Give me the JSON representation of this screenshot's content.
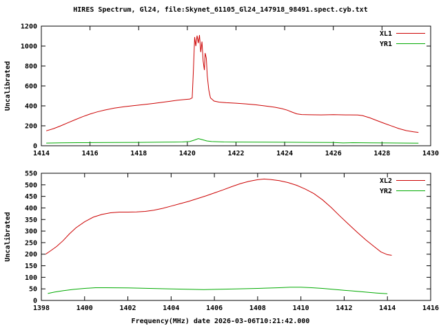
{
  "page": {
    "background": "#ffffff"
  },
  "chart_data": [
    {
      "type": "line",
      "title": "HIRES Spectrum, Gl24, file:Skynet_61105_Gl24_147918_98491.spect.cyb.txt",
      "xlabel": "",
      "ylabel": "Uncalibrated",
      "xlim": [
        1414,
        1430
      ],
      "ylim": [
        0,
        1200
      ],
      "xtick_step": 2,
      "ytick_step": 200,
      "grid": false,
      "legend_position": "top-right",
      "series": [
        {
          "name": "XL1",
          "color": "#cc0000",
          "points": [
            [
              1414.2,
              150
            ],
            [
              1414.5,
              172
            ],
            [
              1414.8,
              200
            ],
            [
              1415.1,
              232
            ],
            [
              1415.4,
              262
            ],
            [
              1415.7,
              292
            ],
            [
              1416.0,
              318
            ],
            [
              1416.3,
              340
            ],
            [
              1416.6,
              358
            ],
            [
              1417.0,
              378
            ],
            [
              1417.4,
              392
            ],
            [
              1417.8,
              403
            ],
            [
              1418.2,
              413
            ],
            [
              1418.6,
              424
            ],
            [
              1419.0,
              437
            ],
            [
              1419.3,
              447
            ],
            [
              1419.6,
              457
            ],
            [
              1419.9,
              464
            ],
            [
              1420.1,
              468
            ],
            [
              1420.2,
              480
            ],
            [
              1420.25,
              760
            ],
            [
              1420.3,
              1090
            ],
            [
              1420.35,
              1000
            ],
            [
              1420.4,
              1105
            ],
            [
              1420.45,
              1030
            ],
            [
              1420.5,
              1110
            ],
            [
              1420.55,
              940
            ],
            [
              1420.6,
              1045
            ],
            [
              1420.65,
              850
            ],
            [
              1420.7,
              760
            ],
            [
              1420.73,
              930
            ],
            [
              1420.78,
              880
            ],
            [
              1420.82,
              700
            ],
            [
              1420.88,
              560
            ],
            [
              1420.95,
              480
            ],
            [
              1421.1,
              448
            ],
            [
              1421.3,
              438
            ],
            [
              1421.6,
              432
            ],
            [
              1422.0,
              427
            ],
            [
              1422.4,
              420
            ],
            [
              1422.8,
              411
            ],
            [
              1423.2,
              399
            ],
            [
              1423.6,
              386
            ],
            [
              1423.9,
              372
            ],
            [
              1424.1,
              357
            ],
            [
              1424.3,
              338
            ],
            [
              1424.5,
              320
            ],
            [
              1424.7,
              313
            ],
            [
              1425.0,
              311
            ],
            [
              1425.5,
              310
            ],
            [
              1426.0,
              312
            ],
            [
              1426.5,
              310
            ],
            [
              1427.0,
              309
            ],
            [
              1427.2,
              303
            ],
            [
              1427.5,
              280
            ],
            [
              1427.8,
              252
            ],
            [
              1428.1,
              224
            ],
            [
              1428.4,
              198
            ],
            [
              1428.7,
              172
            ],
            [
              1429.0,
              152
            ],
            [
              1429.3,
              139
            ],
            [
              1429.5,
              134
            ]
          ]
        },
        {
          "name": "YR1",
          "color": "#00aa00",
          "points": [
            [
              1414.2,
              27
            ],
            [
              1414.8,
              29
            ],
            [
              1415.5,
              31
            ],
            [
              1416.2,
              32
            ],
            [
              1417.0,
              33
            ],
            [
              1418.0,
              34
            ],
            [
              1419.0,
              36
            ],
            [
              1419.8,
              38
            ],
            [
              1420.1,
              42
            ],
            [
              1420.3,
              58
            ],
            [
              1420.45,
              72
            ],
            [
              1420.6,
              62
            ],
            [
              1420.8,
              48
            ],
            [
              1421.0,
              42
            ],
            [
              1421.5,
              38
            ],
            [
              1422.0,
              37
            ],
            [
              1423.0,
              36
            ],
            [
              1424.0,
              35
            ],
            [
              1425.0,
              34
            ],
            [
              1426.0,
              33
            ],
            [
              1426.4,
              28
            ],
            [
              1426.8,
              31
            ],
            [
              1427.5,
              30
            ],
            [
              1428.2,
              28
            ],
            [
              1429.0,
              27
            ],
            [
              1429.5,
              26
            ]
          ]
        }
      ]
    },
    {
      "type": "line",
      "title": "",
      "xlabel": "Frequency(MHz) date 2026-03-06T10:21:42.000",
      "ylabel": "Uncalibrated",
      "xlim": [
        1398,
        1416
      ],
      "ylim": [
        0,
        550
      ],
      "xtick_step": 2,
      "ytick_step": 50,
      "grid": false,
      "legend_position": "top-right",
      "series": [
        {
          "name": "XL2",
          "color": "#cc0000",
          "points": [
            [
              1398.2,
              200
            ],
            [
              1398.4,
              213
            ],
            [
              1398.7,
              233
            ],
            [
              1399.0,
              258
            ],
            [
              1399.3,
              288
            ],
            [
              1399.6,
              314
            ],
            [
              1400.0,
              340
            ],
            [
              1400.4,
              360
            ],
            [
              1400.8,
              372
            ],
            [
              1401.2,
              379
            ],
            [
              1401.6,
              382
            ],
            [
              1402.0,
              382
            ],
            [
              1402.4,
              383
            ],
            [
              1402.8,
              385
            ],
            [
              1403.2,
              390
            ],
            [
              1403.6,
              398
            ],
            [
              1404.0,
              408
            ],
            [
              1404.4,
              418
            ],
            [
              1404.8,
              428
            ],
            [
              1405.2,
              440
            ],
            [
              1405.6,
              452
            ],
            [
              1406.0,
              465
            ],
            [
              1406.4,
              478
            ],
            [
              1406.8,
              492
            ],
            [
              1407.2,
              505
            ],
            [
              1407.6,
              515
            ],
            [
              1408.0,
              522
            ],
            [
              1408.3,
              525
            ],
            [
              1408.6,
              523
            ],
            [
              1409.0,
              518
            ],
            [
              1409.4,
              510
            ],
            [
              1409.8,
              498
            ],
            [
              1410.2,
              482
            ],
            [
              1410.6,
              462
            ],
            [
              1411.0,
              435
            ],
            [
              1411.4,
              402
            ],
            [
              1411.8,
              365
            ],
            [
              1412.2,
              330
            ],
            [
              1412.6,
              295
            ],
            [
              1413.0,
              262
            ],
            [
              1413.4,
              232
            ],
            [
              1413.7,
              210
            ],
            [
              1414.0,
              198
            ],
            [
              1414.2,
              195
            ]
          ]
        },
        {
          "name": "YR2",
          "color": "#00aa00",
          "points": [
            [
              1398.3,
              30
            ],
            [
              1398.6,
              36
            ],
            [
              1399.0,
              42
            ],
            [
              1399.5,
              48
            ],
            [
              1400.0,
              52
            ],
            [
              1400.5,
              55
            ],
            [
              1401.0,
              55
            ],
            [
              1402.0,
              54
            ],
            [
              1403.0,
              52
            ],
            [
              1404.0,
              50
            ],
            [
              1405.0,
              48
            ],
            [
              1405.5,
              47
            ],
            [
              1406.0,
              48
            ],
            [
              1407.0,
              50
            ],
            [
              1408.0,
              52
            ],
            [
              1409.0,
              55
            ],
            [
              1409.5,
              57
            ],
            [
              1410.0,
              57
            ],
            [
              1410.5,
              55
            ],
            [
              1411.0,
              52
            ],
            [
              1411.5,
              48
            ],
            [
              1412.0,
              44
            ],
            [
              1412.5,
              40
            ],
            [
              1413.0,
              36
            ],
            [
              1413.5,
              32
            ],
            [
              1414.0,
              29
            ]
          ]
        }
      ]
    }
  ]
}
